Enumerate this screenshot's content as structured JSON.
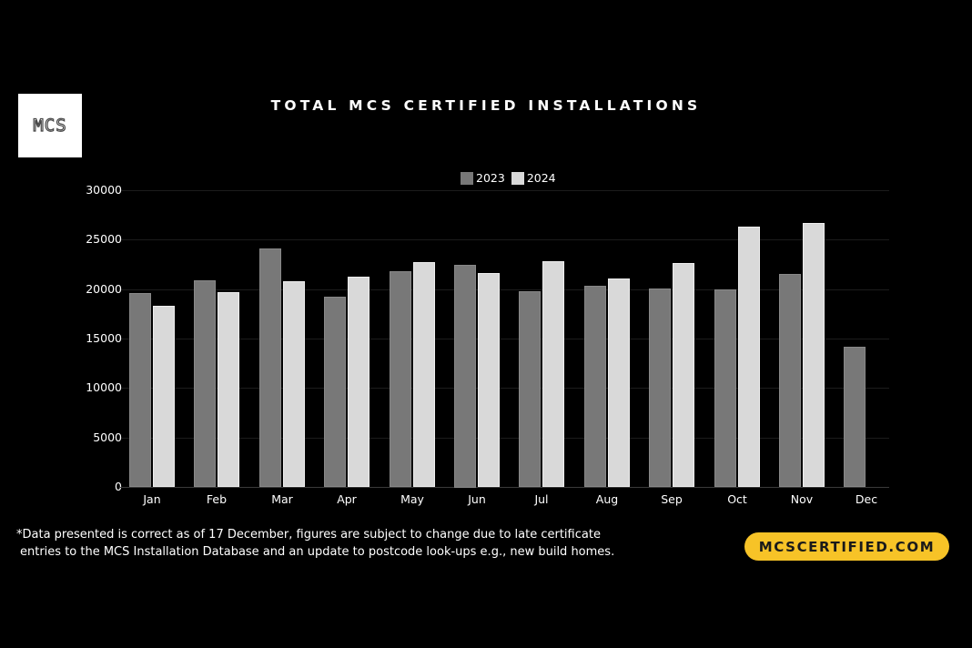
{
  "logo": {
    "text": "MCS"
  },
  "colors": {
    "background": "#000000",
    "series_2023": "#787878",
    "series_2024": "#d9d9d9",
    "cta_bg": "#f7c327",
    "cta_text": "#1a1a1a"
  },
  "chart_data": {
    "type": "bar",
    "title": "TOTAL MCS CERTIFIED INSTALLATIONS",
    "xlabel": "",
    "ylabel": "",
    "ylim": [
      0,
      30000
    ],
    "yticks": [
      "0",
      "5000",
      "10000",
      "15000",
      "20000",
      "25000",
      "30000"
    ],
    "grid": true,
    "legend_position": "top-center",
    "categories": [
      "Jan",
      "Feb",
      "Mar",
      "Apr",
      "May",
      "Jun",
      "Jul",
      "Aug",
      "Sep",
      "Oct",
      "Nov",
      "Dec"
    ],
    "series": [
      {
        "name": "2023",
        "values": [
          19600,
          20900,
          24100,
          19200,
          21800,
          22500,
          19800,
          20300,
          20100,
          20000,
          21500,
          14200
        ]
      },
      {
        "name": "2024",
        "values": [
          18300,
          19700,
          20800,
          21300,
          22700,
          21600,
          22800,
          21100,
          22600,
          26300,
          26700,
          null
        ]
      }
    ]
  },
  "legend": {
    "items": [
      {
        "label": "2023"
      },
      {
        "label": "2024"
      }
    ]
  },
  "footnote": {
    "line1": "*Data presented is correct as of 17 December, figures are subject to change due to late certificate",
    "line2": "entries to the MCS Installation Database and an update to postcode look-ups e.g., new build homes."
  },
  "cta": {
    "label": "MCSCERTIFIED.COM"
  }
}
